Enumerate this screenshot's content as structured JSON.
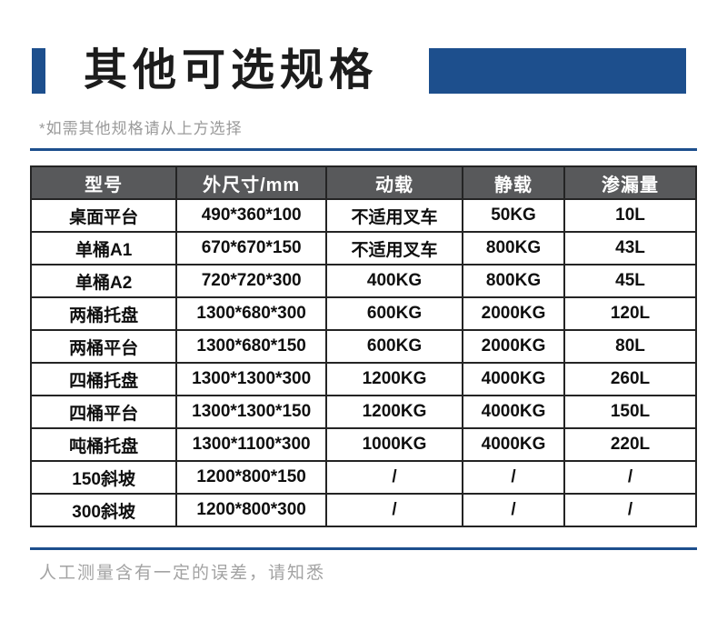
{
  "page": {
    "title": "其他可选规格",
    "note": "*如需其他规格请从上方选择",
    "footer_note": "人工测量含有一定的误差，请知悉"
  },
  "colors": {
    "accent_blue": "#1D4F8D",
    "table_header_gray": "#58595B",
    "table_border": "#242424",
    "muted_text_gray": "#9A9A9A"
  },
  "table": {
    "columns": [
      "型号",
      "外尺寸/mm",
      "动载",
      "静载",
      "渗漏量"
    ],
    "rows": [
      [
        "桌面平台",
        "490*360*100",
        "不适用叉车",
        "50KG",
        "10L"
      ],
      [
        "单桶A1",
        "670*670*150",
        "不适用叉车",
        "800KG",
        "43L"
      ],
      [
        "单桶A2",
        "720*720*300",
        "400KG",
        "800KG",
        "45L"
      ],
      [
        "两桶托盘",
        "1300*680*300",
        "600KG",
        "2000KG",
        "120L"
      ],
      [
        "两桶平台",
        "1300*680*150",
        "600KG",
        "2000KG",
        "80L"
      ],
      [
        "四桶托盘",
        "1300*1300*300",
        "1200KG",
        "4000KG",
        "260L"
      ],
      [
        "四桶平台",
        "1300*1300*150",
        "1200KG",
        "4000KG",
        "150L"
      ],
      [
        "吨桶托盘",
        "1300*1100*300",
        "1000KG",
        "4000KG",
        "220L"
      ],
      [
        "150斜坡",
        "1200*800*150",
        "/",
        "/",
        "/"
      ],
      [
        "300斜坡",
        "1200*800*300",
        "/",
        "/",
        "/"
      ]
    ]
  }
}
